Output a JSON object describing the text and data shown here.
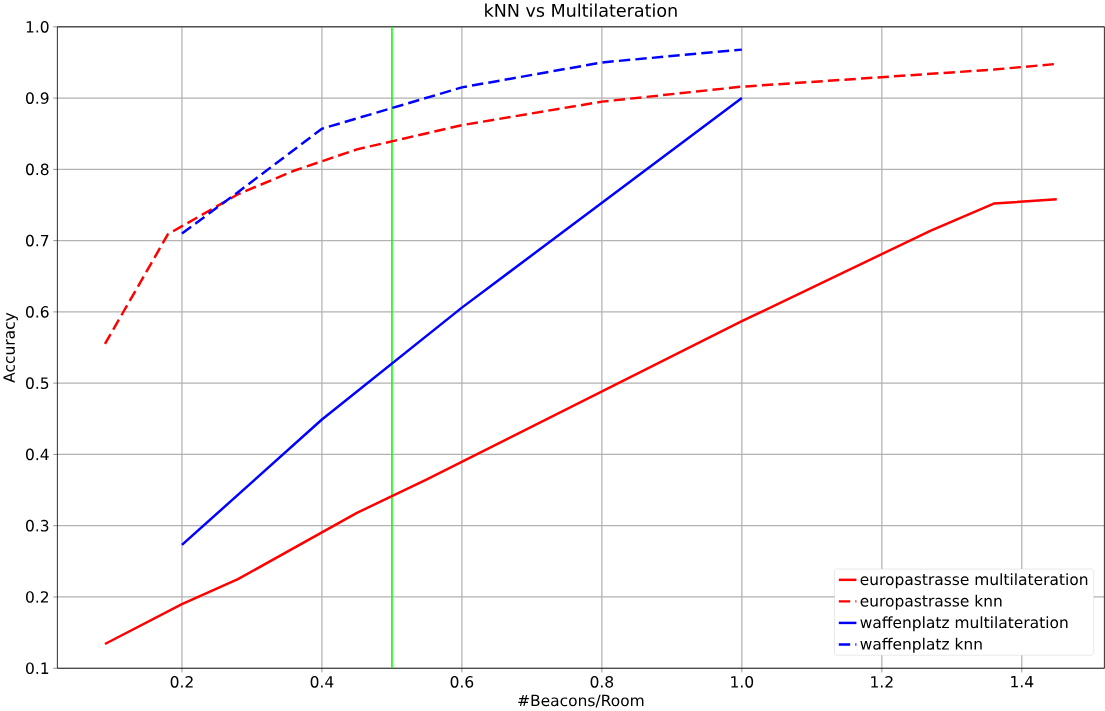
{
  "chart_data": {
    "type": "line",
    "title": "kNN vs Multilateration",
    "xlabel": "#Beacons/Room",
    "ylabel": "Accuracy",
    "xlim": [
      0.022,
      1.518
    ],
    "ylim": [
      0.1,
      1.0
    ],
    "xticks": [
      0.2,
      0.4,
      0.6,
      0.8,
      {
        "value": 1.0,
        "label": "1.0"
      },
      1.2,
      1.4
    ],
    "yticks": [
      0.1,
      0.2,
      0.3,
      0.4,
      0.5,
      0.6,
      0.7,
      0.8,
      0.9,
      {
        "value": 1.0,
        "label": "1.0"
      }
    ],
    "grid": true,
    "legend": "bottom right",
    "ref_lines": [
      {
        "axis": "x",
        "value": 0.5,
        "color": "#00ff00"
      }
    ],
    "series": [
      {
        "name": "europastrasse multilateration",
        "color": "#ff0000",
        "line_style": "solid",
        "x": [
          0.09,
          0.2,
          0.28,
          0.45,
          0.55,
          1.0,
          1.27,
          1.36,
          1.45
        ],
        "values": [
          0.134,
          0.19,
          0.225,
          0.318,
          0.365,
          0.587,
          0.714,
          0.752,
          0.758
        ]
      },
      {
        "name": "europastrasse knn",
        "color": "#ff0000",
        "line_style": "dashed",
        "x": [
          0.09,
          0.18,
          0.28,
          0.36,
          0.45,
          0.6,
          0.8,
          1.0,
          1.36,
          1.45
        ],
        "values": [
          0.555,
          0.709,
          0.765,
          0.798,
          0.828,
          0.862,
          0.895,
          0.916,
          0.94,
          0.948
        ]
      },
      {
        "name": "waffenplatz multilateration",
        "color": "#0000ff",
        "line_style": "solid",
        "x": [
          0.2,
          0.4,
          0.6,
          1.0
        ],
        "values": [
          0.273,
          0.449,
          0.606,
          0.9
        ]
      },
      {
        "name": "waffenplatz knn",
        "color": "#0000ff",
        "line_style": "dashed",
        "x": [
          0.2,
          0.28,
          0.4,
          0.6,
          0.8,
          1.0
        ],
        "values": [
          0.71,
          0.768,
          0.857,
          0.915,
          0.95,
          0.968
        ]
      }
    ]
  }
}
